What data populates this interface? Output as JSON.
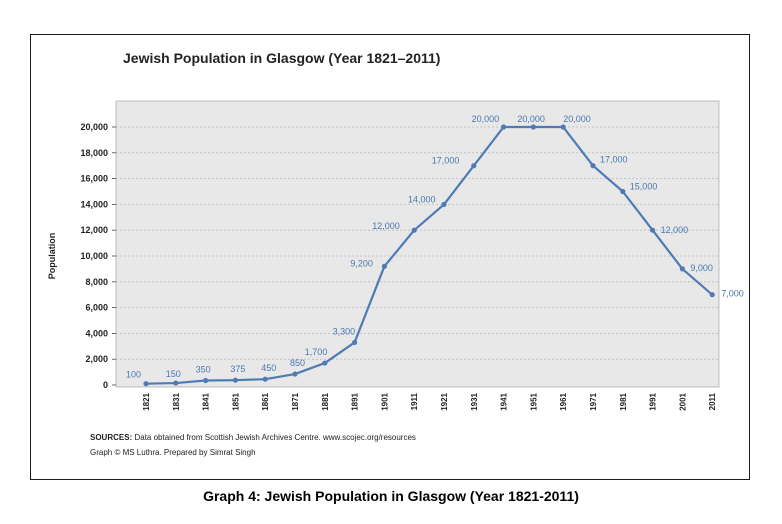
{
  "caption": "Graph 4: Jewish Population in Glasgow (Year 1821-2011)",
  "sources_label": "SOURCES:",
  "sources_text": "Data obtained from Scottish Jewish Archives Centre. www.scojec.org/resources",
  "credit": "Graph © MS Luthra. Prepared by Simrat Singh",
  "colors": {
    "line": "#4f7bb5",
    "plot_bg": "#e8e8e8",
    "grid": "#b9b9b9",
    "labels": "#4a78b0"
  },
  "chart_data": {
    "type": "line",
    "title": "Jewish Population in Glasgow (Year 1821–2011)",
    "xlabel": "",
    "ylabel": "Population",
    "grid": true,
    "ylim": [
      0,
      20000
    ],
    "yticks": [
      "0",
      "2,000",
      "4,000",
      "6,000",
      "8,000",
      "10,000",
      "12,000",
      "14,000",
      "16,000",
      "18,000",
      "20,000"
    ],
    "x": [
      "1821",
      "1831",
      "1841",
      "1851",
      "1861",
      "1871",
      "1881",
      "1891",
      "1901",
      "1911",
      "1921",
      "1931",
      "1941",
      "1951",
      "1961",
      "1971",
      "1981",
      "1991",
      "2001",
      "2011"
    ],
    "values": [
      100,
      150,
      350,
      375,
      450,
      850,
      1700,
      3300,
      9200,
      12000,
      14000,
      17000,
      20000,
      20000,
      20000,
      17000,
      15000,
      12000,
      9000,
      7000
    ],
    "data_labels": [
      "100",
      "150",
      "350",
      "375",
      "450",
      "850",
      "1,700",
      "3,300",
      "9,200",
      "12,000",
      "14,000",
      "17,000",
      "20,000",
      "20,000",
      "20,000",
      "17,000",
      "15,000",
      "12,000",
      "9,000",
      "7,000"
    ]
  }
}
